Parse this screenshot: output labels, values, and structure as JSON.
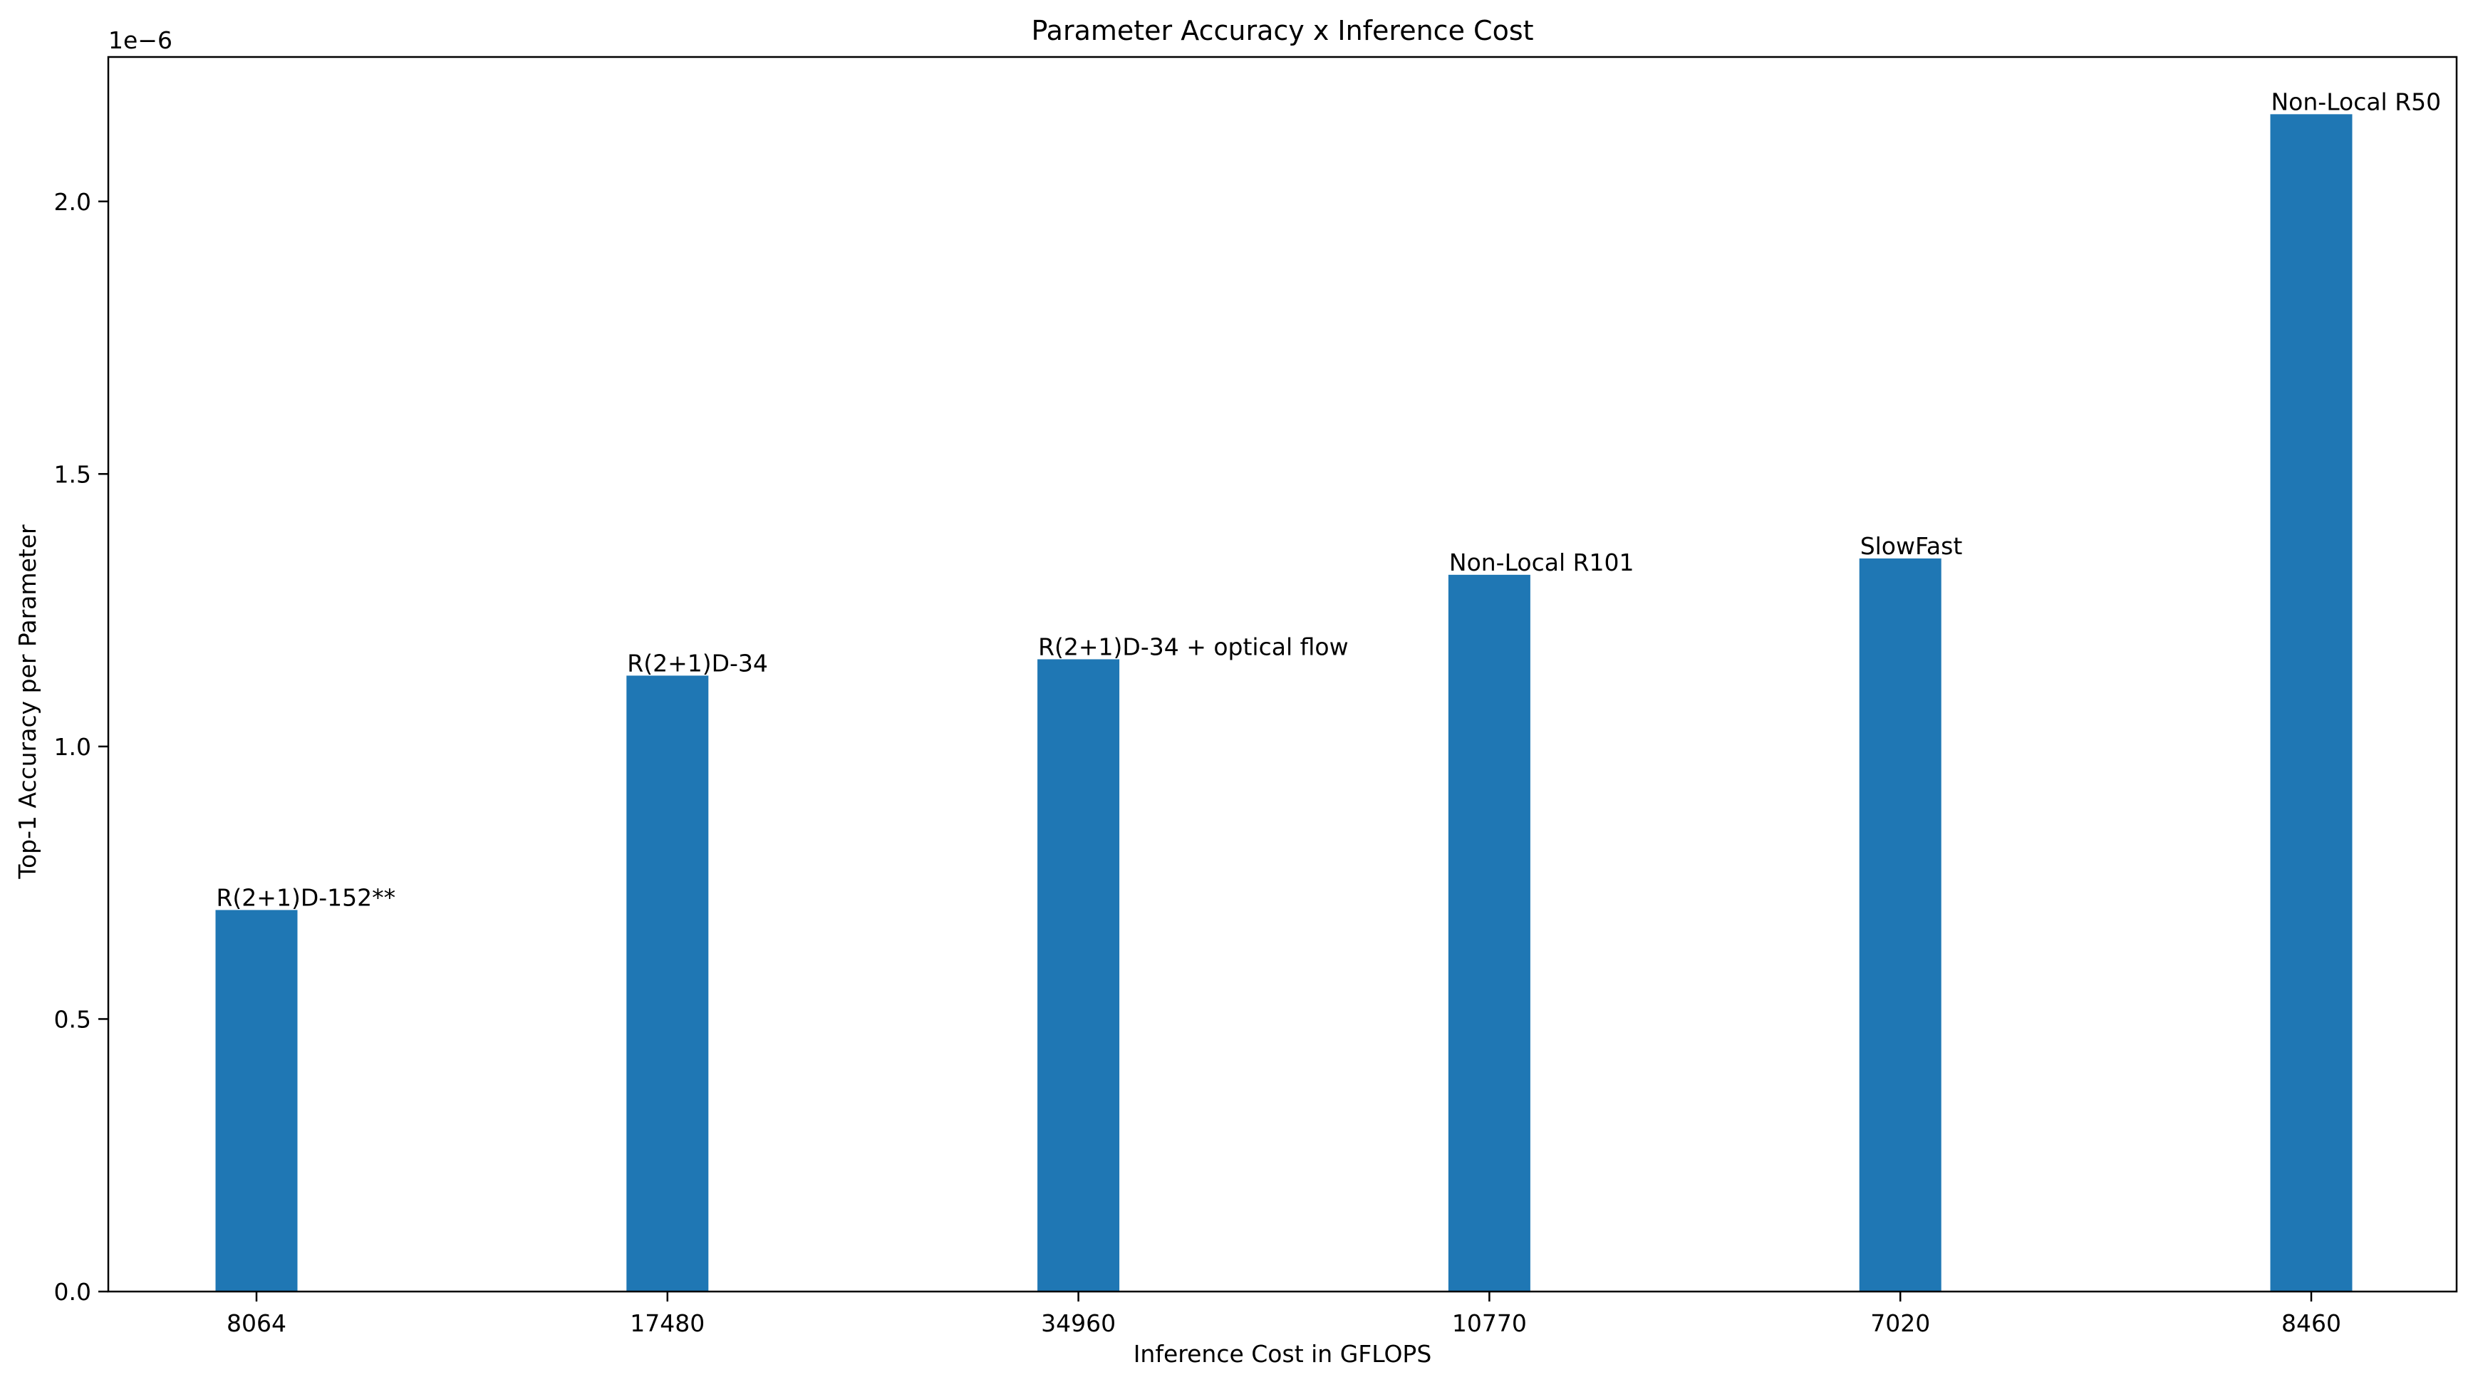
{
  "chart_data": {
    "type": "bar",
    "title": "Parameter Accuracy x Inference Cost",
    "xlabel": "Inference Cost in GFLOPS",
    "ylabel": "Top-1 Accuracy per Parameter",
    "y_offset_label": "1e−6",
    "categories": [
      "8064",
      "17480",
      "34960",
      "10770",
      "7020",
      "8460"
    ],
    "values": [
      0.7,
      1.13,
      1.16,
      1.315,
      1.345,
      2.16
    ],
    "bar_labels": [
      "R(2+1)D-152**",
      "R(2+1)D-34",
      "R(2+1)D-34 + optical flow",
      "Non-Local R101",
      "SlowFast",
      "Non-Local R50"
    ],
    "ylim": [
      0,
      2.265
    ],
    "yticks": [
      0.0,
      0.5,
      1.0,
      1.5,
      2.0
    ],
    "ytick_labels": [
      "0.0",
      "0.5",
      "1.0",
      "1.5",
      "2.0"
    ],
    "grid": false,
    "bar_color": "#1f77b4"
  }
}
